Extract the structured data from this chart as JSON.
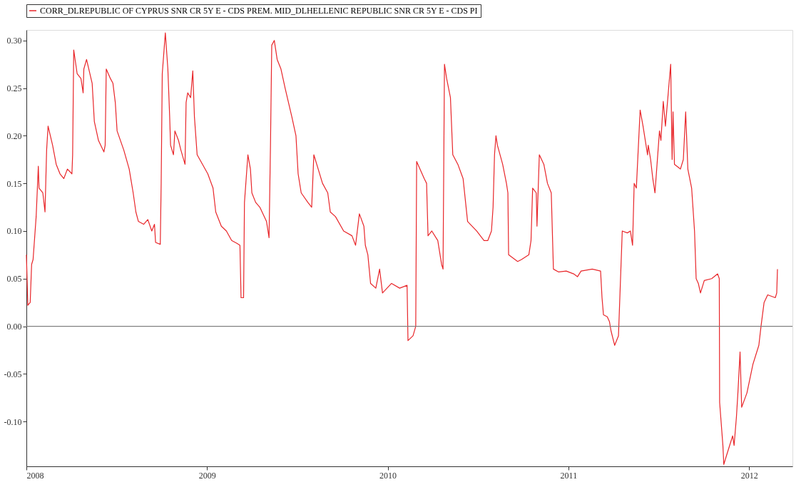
{
  "chart_data": {
    "type": "line",
    "x": [
      2008.0,
      2008.008,
      2008.021,
      2008.029,
      2008.037,
      2008.054,
      2008.066,
      2008.07,
      2008.091,
      2008.103,
      2008.112,
      2008.12,
      2008.145,
      2008.165,
      2008.186,
      2008.207,
      2008.227,
      2008.252,
      2008.256,
      2008.262,
      2008.281,
      2008.302,
      2008.314,
      2008.318,
      2008.333,
      2008.364,
      2008.376,
      2008.399,
      2008.429,
      2008.436,
      2008.442,
      2008.465,
      2008.479,
      2008.492,
      2008.502,
      2008.539,
      2008.569,
      2008.591,
      2008.606,
      2008.62,
      2008.649,
      2008.672,
      2008.694,
      2008.709,
      2008.715,
      2008.741,
      2008.746,
      2008.752,
      2008.769,
      2008.783,
      2008.793,
      2008.798,
      2008.814,
      2008.822,
      2008.842,
      2008.855,
      2008.878,
      2008.884,
      2008.893,
      2008.909,
      2008.921,
      2008.93,
      2008.945,
      2009.004,
      2009.033,
      2009.048,
      2009.079,
      2009.107,
      2009.136,
      2009.165,
      2009.182,
      2009.188,
      2009.202,
      2009.207,
      2009.226,
      2009.24,
      2009.248,
      2009.269,
      2009.292,
      2009.329,
      2009.343,
      2009.351,
      2009.358,
      2009.372,
      2009.388,
      2009.409,
      2009.432,
      2009.469,
      2009.492,
      2009.504,
      2009.521,
      2009.558,
      2009.579,
      2009.591,
      2009.607,
      2009.639,
      2009.668,
      2009.682,
      2009.711,
      2009.756,
      2009.802,
      2009.822,
      2009.843,
      2009.868,
      2009.876,
      2009.89,
      2009.905,
      2009.934,
      2009.955,
      2009.971,
      2010.021,
      2010.066,
      2010.107,
      2010.112,
      2010.14,
      2010.155,
      2010.16,
      2010.202,
      2010.215,
      2010.223,
      2010.244,
      2010.277,
      2010.298,
      2010.306,
      2010.314,
      2010.326,
      2010.347,
      2010.36,
      2010.388,
      2010.417,
      2010.442,
      2010.492,
      2010.533,
      2010.554,
      2010.574,
      2010.583,
      2010.591,
      2010.599,
      2010.607,
      2010.636,
      2010.657,
      2010.665,
      2010.669,
      2010.719,
      2010.74,
      2010.781,
      2010.793,
      2010.802,
      2010.822,
      2010.826,
      2010.839,
      2010.864,
      2010.884,
      2010.905,
      2010.917,
      2010.946,
      2010.988,
      2011.029,
      2011.05,
      2011.07,
      2011.132,
      2011.178,
      2011.186,
      2011.194,
      2011.215,
      2011.227,
      2011.236,
      2011.256,
      2011.277,
      2011.298,
      2011.326,
      2011.343,
      2011.355,
      2011.364,
      2011.376,
      2011.397,
      2011.413,
      2011.438,
      2011.442,
      2011.455,
      2011.467,
      2011.479,
      2011.504,
      2011.512,
      2011.525,
      2011.537,
      2011.566,
      2011.574,
      2011.579,
      2011.587,
      2011.62,
      2011.636,
      2011.649,
      2011.661,
      2011.682,
      2011.698,
      2011.707,
      2011.719,
      2011.731,
      2011.752,
      2011.793,
      2011.826,
      2011.835,
      2011.837,
      2011.843,
      2011.855,
      2011.86,
      2011.876,
      2011.909,
      2011.917,
      2011.93,
      2011.938,
      2011.95,
      2011.959,
      2011.988,
      2012.021,
      2012.054,
      2012.066,
      2012.083,
      2012.103,
      2012.145,
      2012.153,
      2012.157
    ],
    "series": [
      {
        "name": "CORR_DLREPUBLIC OF CYPRUS SNR CR 5Y E - CDS PREM. MID_DLHELLENIC REPUBLIC SNR CR 5Y E - CDS PI",
        "color": "#e8262a",
        "values": [
          0.075,
          0.022,
          0.025,
          0.065,
          0.07,
          0.115,
          0.168,
          0.145,
          0.14,
          0.12,
          0.185,
          0.21,
          0.19,
          0.17,
          0.16,
          0.155,
          0.165,
          0.16,
          0.18,
          0.29,
          0.265,
          0.26,
          0.245,
          0.27,
          0.28,
          0.255,
          0.215,
          0.195,
          0.183,
          0.19,
          0.27,
          0.26,
          0.255,
          0.235,
          0.205,
          0.185,
          0.165,
          0.14,
          0.12,
          0.11,
          0.107,
          0.112,
          0.1,
          0.107,
          0.088,
          0.086,
          0.15,
          0.265,
          0.308,
          0.27,
          0.22,
          0.19,
          0.18,
          0.205,
          0.195,
          0.185,
          0.17,
          0.235,
          0.245,
          0.24,
          0.268,
          0.22,
          0.18,
          0.16,
          0.145,
          0.12,
          0.105,
          0.1,
          0.09,
          0.087,
          0.085,
          0.03,
          0.03,
          0.13,
          0.18,
          0.165,
          0.14,
          0.13,
          0.125,
          0.11,
          0.093,
          0.19,
          0.295,
          0.3,
          0.28,
          0.27,
          0.25,
          0.22,
          0.2,
          0.16,
          0.14,
          0.13,
          0.125,
          0.18,
          0.17,
          0.15,
          0.14,
          0.12,
          0.115,
          0.1,
          0.095,
          0.085,
          0.118,
          0.105,
          0.085,
          0.075,
          0.045,
          0.04,
          0.06,
          0.035,
          0.045,
          0.04,
          0.043,
          -0.015,
          -0.01,
          0.0,
          0.173,
          0.155,
          0.15,
          0.095,
          0.1,
          0.09,
          0.065,
          0.06,
          0.275,
          0.26,
          0.24,
          0.18,
          0.17,
          0.155,
          0.11,
          0.1,
          0.09,
          0.09,
          0.1,
          0.125,
          0.18,
          0.2,
          0.19,
          0.17,
          0.15,
          0.14,
          0.075,
          0.068,
          0.07,
          0.075,
          0.09,
          0.145,
          0.14,
          0.105,
          0.18,
          0.17,
          0.15,
          0.14,
          0.06,
          0.057,
          0.058,
          0.055,
          0.052,
          0.058,
          0.06,
          0.058,
          0.03,
          0.012,
          0.01,
          0.005,
          -0.005,
          -0.02,
          -0.01,
          0.1,
          0.098,
          0.1,
          0.085,
          0.15,
          0.145,
          0.227,
          0.21,
          0.18,
          0.19,
          0.175,
          0.155,
          0.14,
          0.205,
          0.195,
          0.236,
          0.21,
          0.275,
          0.175,
          0.225,
          0.17,
          0.165,
          0.175,
          0.225,
          0.165,
          0.145,
          0.1,
          0.05,
          0.045,
          0.035,
          0.048,
          0.05,
          0.055,
          0.05,
          -0.08,
          -0.095,
          -0.125,
          -0.145,
          -0.135,
          -0.115,
          -0.125,
          -0.095,
          -0.07,
          -0.027,
          -0.085,
          -0.07,
          -0.04,
          -0.02,
          0.0,
          0.025,
          0.033,
          0.03,
          0.035,
          0.06
        ]
      }
    ],
    "xlim": [
      2008,
      2012.24
    ],
    "xticks": [
      2008,
      2009,
      2010,
      2011,
      2012
    ],
    "ylim": [
      -0.147,
      0.311
    ],
    "yticks": [
      {
        "value": -0.1,
        "label": "-0.10"
      },
      {
        "value": -0.05,
        "label": "-0.05"
      },
      {
        "value": 0,
        "label": "0.00"
      },
      {
        "value": 0.05,
        "label": "0.05"
      },
      {
        "value": 0.1,
        "label": "0.10"
      },
      {
        "value": 0.15,
        "label": "0.15"
      },
      {
        "value": 0.2,
        "label": "0.20"
      },
      {
        "value": 0.25,
        "label": "0.25"
      },
      {
        "value": 0.3,
        "label": "0.30"
      }
    ],
    "ref_lines": [
      {
        "axis": "y",
        "value": 0,
        "color": "#808080"
      }
    ],
    "grid": false,
    "legend": "top",
    "marker": "none",
    "line_style": "solid"
  }
}
